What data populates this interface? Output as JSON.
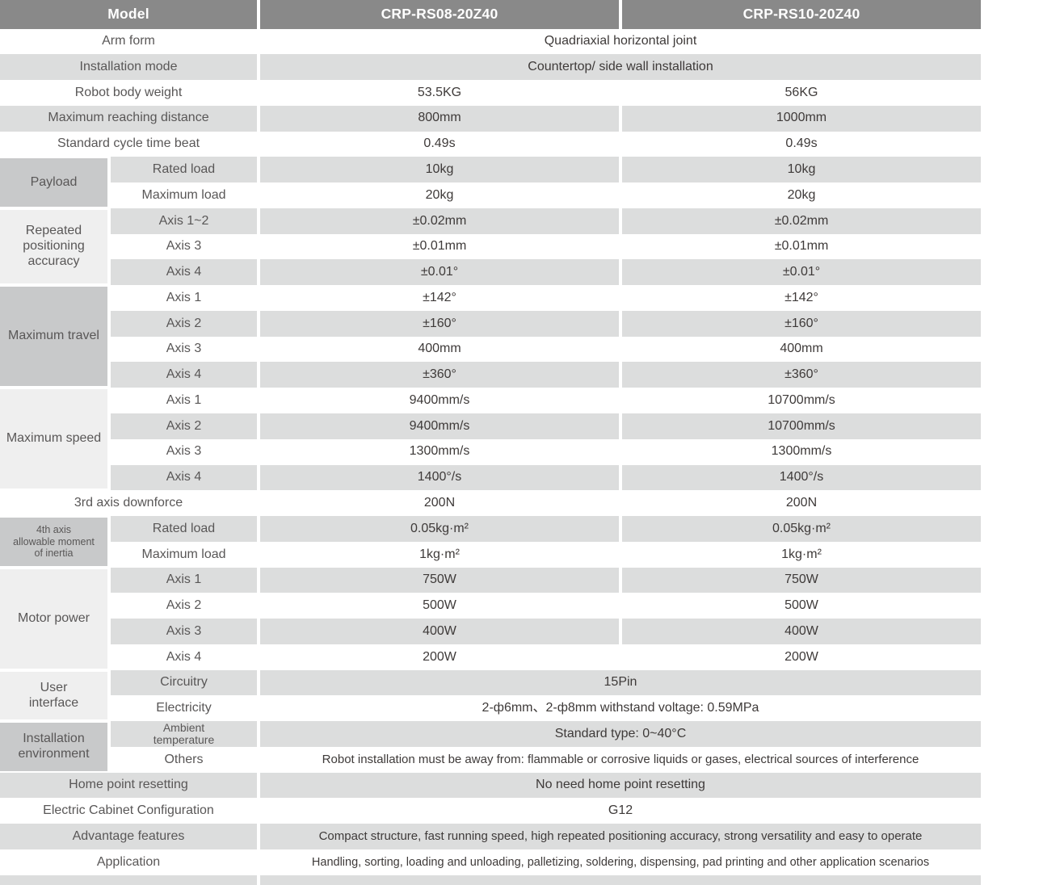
{
  "colors": {
    "header_bg": "#898989",
    "header_text": "#ffffff",
    "stripe_bg": "#dcdddd",
    "group_dark_bg": "#c8c9ca",
    "group_light_bg": "#efefef",
    "label_text": "#595757",
    "value_text": "#3e3a39"
  },
  "table": {
    "header": {
      "model_label": "Model",
      "models": [
        "CRP-RS08-20Z40",
        "CRP-RS10-20Z40"
      ]
    },
    "groups": {
      "payload": "Payload",
      "accuracy": "Repeated\npositioning\naccuracy",
      "travel": "Maximum travel",
      "speed": "Maximum speed",
      "inertia": "4th axis\nallowable moment\nof inertia",
      "motor": "Motor power",
      "ui": "User\ninterface",
      "env": "Installation\nenvironment"
    },
    "rows": [
      {
        "label": "Arm form",
        "v": "Quadriaxial horizontal joint"
      },
      {
        "label": "Installation mode",
        "v": "Countertop/ side wall installation"
      },
      {
        "label": "Robot body weight",
        "v1": "53.5KG",
        "v2": "56KG"
      },
      {
        "label": "Maximum reaching distance",
        "v1": "800mm",
        "v2": "1000mm"
      },
      {
        "label": "Standard cycle time beat",
        "v1": "0.49s",
        "v2": "0.49s"
      },
      {
        "label": "Rated load",
        "v1": "10kg",
        "v2": "10kg"
      },
      {
        "label": "Maximum load",
        "v1": "20kg",
        "v2": "20kg"
      },
      {
        "label": "Axis 1~2",
        "v1": "±0.02mm",
        "v2": "±0.02mm"
      },
      {
        "label": "Axis 3",
        "v1": "±0.01mm",
        "v2": "±0.01mm"
      },
      {
        "label": "Axis 4",
        "v1": "±0.01°",
        "v2": "±0.01°"
      },
      {
        "label": "Axis 1",
        "v1": "±142°",
        "v2": "±142°"
      },
      {
        "label": "Axis 2",
        "v1": "±160°",
        "v2": "±160°"
      },
      {
        "label": "Axis 3",
        "v1": "400mm",
        "v2": "400mm"
      },
      {
        "label": "Axis 4",
        "v1": "±360°",
        "v2": "±360°"
      },
      {
        "label": "Axis 1",
        "v1": "9400mm/s",
        "v2": "10700mm/s"
      },
      {
        "label": "Axis 2",
        "v1": "9400mm/s",
        "v2": "10700mm/s"
      },
      {
        "label": "Axis 3",
        "v1": "1300mm/s",
        "v2": "1300mm/s"
      },
      {
        "label": "Axis 4",
        "v1": "1400°/s",
        "v2": "1400°/s"
      },
      {
        "label": "3rd axis downforce",
        "v1": "200N",
        "v2": "200N"
      },
      {
        "label": "Rated load",
        "v1": "0.05kg·m²",
        "v2": "0.05kg·m²"
      },
      {
        "label": "Maximum load",
        "v1": "1kg·m²",
        "v2": "1kg·m²"
      },
      {
        "label": "Axis 1",
        "v1": "750W",
        "v2": "750W"
      },
      {
        "label": "Axis 2",
        "v1": "500W",
        "v2": "500W"
      },
      {
        "label": "Axis 3",
        "v1": "400W",
        "v2": "400W"
      },
      {
        "label": "Axis 4",
        "v1": "200W",
        "v2": "200W"
      },
      {
        "label": "Circuitry",
        "v": "15Pin"
      },
      {
        "label": "Electricity",
        "v": "2-ф6mm、2-ф8mm withstand voltage: 0.59MPa"
      },
      {
        "label": "Ambient\ntemperature",
        "v": "Standard type: 0~40°C"
      },
      {
        "label": "Others",
        "v": "Robot installation must be away from: flammable or corrosive liquids or gases, electrical sources of interference"
      },
      {
        "label": "Home point resetting",
        "v": "No need home point resetting"
      },
      {
        "label": "Electric Cabinet Configuration",
        "v": "G12"
      },
      {
        "label": "Advantage features",
        "v": "Compact structure, fast running speed, high repeated positioning accuracy, strong versatility and easy to operate"
      },
      {
        "label": "Application",
        "v": "Handling, sorting, loading and unloading, palletizing, soldering, dispensing, pad printing and other application scenarios"
      }
    ]
  }
}
